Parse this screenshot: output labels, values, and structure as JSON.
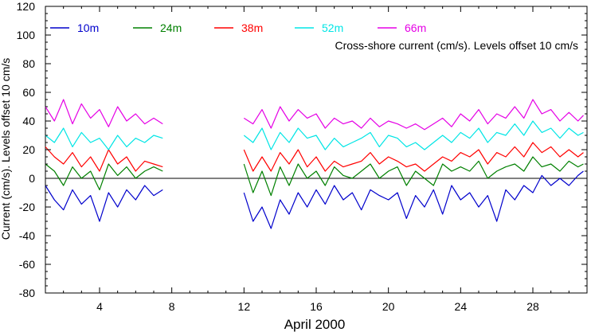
{
  "chart_data": {
    "type": "line",
    "title": "",
    "annotation": "Cross-shore current (cm/s). Levels offset 10 cm/s",
    "xlabel": "April 2000",
    "ylabel": "Current (cm/s). Levels offset 10 cm/s",
    "xlim": [
      1,
      31
    ],
    "ylim": [
      -80,
      120
    ],
    "x_ticks": [
      4,
      8,
      12,
      16,
      20,
      24,
      28
    ],
    "x_tick_labels": [
      "4",
      "8",
      "12",
      "16",
      "20",
      "24",
      "28"
    ],
    "y_ticks": [
      -80,
      -60,
      -40,
      -20,
      0,
      20,
      40,
      60,
      80,
      100,
      120
    ],
    "y_tick_labels": [
      "-80",
      "-60",
      "-40",
      "-20",
      "0",
      "20",
      "40",
      "60",
      "80",
      "100",
      "120"
    ],
    "zero_line": 0,
    "legend_position": "top-left",
    "gap": [
      7.6,
      11.9
    ],
    "series": [
      {
        "name": "10m",
        "color": "#0000cc",
        "x": [
          1.0,
          1.5,
          2.0,
          2.5,
          3.0,
          3.5,
          4.0,
          4.5,
          5.0,
          5.5,
          6.0,
          6.5,
          7.0,
          7.5,
          12.0,
          12.5,
          13.0,
          13.5,
          14.0,
          14.5,
          15.0,
          15.5,
          16.0,
          16.5,
          17.0,
          17.5,
          18.0,
          18.5,
          19.0,
          19.5,
          20.0,
          20.5,
          21.0,
          21.5,
          22.0,
          22.5,
          23.0,
          23.5,
          24.0,
          24.5,
          25.0,
          25.5,
          26.0,
          26.5,
          27.0,
          27.5,
          28.0,
          28.5,
          29.0,
          29.5,
          30.0,
          30.5,
          30.8
        ],
        "values": [
          -5,
          -15,
          -22,
          -8,
          -18,
          -12,
          -30,
          -10,
          -20,
          -8,
          -15,
          -5,
          -12,
          -8,
          -10,
          -30,
          -20,
          -35,
          -15,
          -25,
          -10,
          -20,
          -8,
          -18,
          -5,
          -15,
          -10,
          -22,
          -8,
          -12,
          -15,
          -10,
          -28,
          -12,
          -20,
          -8,
          -25,
          -5,
          -15,
          -10,
          -20,
          -12,
          -30,
          -8,
          -15,
          -5,
          -10,
          2,
          -5,
          0,
          -5,
          2,
          5
        ]
      },
      {
        "name": "24m",
        "color": "#008000",
        "x": [
          1.0,
          1.5,
          2.0,
          2.5,
          3.0,
          3.5,
          4.0,
          4.5,
          5.0,
          5.5,
          6.0,
          6.5,
          7.0,
          7.5,
          12.0,
          12.5,
          13.0,
          13.5,
          14.0,
          14.5,
          15.0,
          15.5,
          16.0,
          16.5,
          17.0,
          17.5,
          18.0,
          18.5,
          19.0,
          19.5,
          20.0,
          20.5,
          21.0,
          21.5,
          22.0,
          22.5,
          23.0,
          23.5,
          24.0,
          24.5,
          25.0,
          25.5,
          26.0,
          26.5,
          27.0,
          27.5,
          28.0,
          28.5,
          29.0,
          29.5,
          30.0,
          30.5,
          30.8
        ],
        "values": [
          10,
          5,
          -5,
          8,
          0,
          5,
          -8,
          10,
          2,
          8,
          0,
          5,
          8,
          5,
          10,
          -10,
          5,
          -12,
          8,
          -5,
          10,
          0,
          5,
          -5,
          8,
          2,
          0,
          5,
          10,
          0,
          5,
          8,
          -5,
          5,
          0,
          -5,
          10,
          5,
          8,
          5,
          12,
          0,
          5,
          8,
          10,
          5,
          15,
          8,
          10,
          5,
          12,
          8,
          10
        ]
      },
      {
        "name": "38m",
        "color": "#ff0000",
        "x": [
          1.0,
          1.5,
          2.0,
          2.5,
          3.0,
          3.5,
          4.0,
          4.5,
          5.0,
          5.5,
          6.0,
          6.5,
          7.0,
          7.5,
          12.0,
          12.5,
          13.0,
          13.5,
          14.0,
          14.5,
          15.0,
          15.5,
          16.0,
          16.5,
          17.0,
          17.5,
          18.0,
          18.5,
          19.0,
          19.5,
          20.0,
          20.5,
          21.0,
          21.5,
          22.0,
          22.5,
          23.0,
          23.5,
          24.0,
          24.5,
          25.0,
          25.5,
          26.0,
          26.5,
          27.0,
          27.5,
          28.0,
          28.5,
          29.0,
          29.5,
          30.0,
          30.5,
          30.8
        ],
        "values": [
          22,
          15,
          10,
          18,
          8,
          15,
          5,
          20,
          10,
          15,
          5,
          12,
          10,
          8,
          20,
          5,
          15,
          5,
          18,
          10,
          20,
          8,
          15,
          5,
          12,
          8,
          10,
          12,
          18,
          10,
          15,
          12,
          8,
          10,
          5,
          10,
          15,
          12,
          18,
          15,
          20,
          10,
          18,
          15,
          22,
          15,
          25,
          18,
          22,
          15,
          20,
          15,
          18
        ]
      },
      {
        "name": "52m",
        "color": "#00e5e5",
        "x": [
          1.0,
          1.5,
          2.0,
          2.5,
          3.0,
          3.5,
          4.0,
          4.5,
          5.0,
          5.5,
          6.0,
          6.5,
          7.0,
          7.5,
          12.0,
          12.5,
          13.0,
          13.5,
          14.0,
          14.5,
          15.0,
          15.5,
          16.0,
          16.5,
          17.0,
          17.5,
          18.0,
          18.5,
          19.0,
          19.5,
          20.0,
          20.5,
          21.0,
          21.5,
          22.0,
          22.5,
          23.0,
          23.5,
          24.0,
          24.5,
          25.0,
          25.5,
          26.0,
          26.5,
          27.0,
          27.5,
          28.0,
          28.5,
          29.0,
          29.5,
          30.0,
          30.5,
          30.8
        ],
        "values": [
          30,
          25,
          35,
          22,
          32,
          25,
          28,
          20,
          30,
          22,
          28,
          25,
          30,
          28,
          30,
          25,
          35,
          20,
          32,
          25,
          35,
          28,
          30,
          20,
          28,
          22,
          25,
          28,
          32,
          22,
          30,
          28,
          22,
          25,
          20,
          25,
          30,
          25,
          32,
          28,
          35,
          25,
          32,
          30,
          38,
          30,
          40,
          32,
          35,
          28,
          35,
          30,
          32
        ]
      },
      {
        "name": "66m",
        "color": "#e500e5",
        "x": [
          1.0,
          1.5,
          2.0,
          2.5,
          3.0,
          3.5,
          4.0,
          4.5,
          5.0,
          5.5,
          6.0,
          6.5,
          7.0,
          7.5,
          12.0,
          12.5,
          13.0,
          13.5,
          14.0,
          14.5,
          15.0,
          15.5,
          16.0,
          16.5,
          17.0,
          17.5,
          18.0,
          18.5,
          19.0,
          19.5,
          20.0,
          20.5,
          21.0,
          21.5,
          22.0,
          22.5,
          23.0,
          23.5,
          24.0,
          24.5,
          25.0,
          25.5,
          26.0,
          26.5,
          27.0,
          27.5,
          28.0,
          28.5,
          29.0,
          29.5,
          30.0,
          30.5,
          30.8
        ],
        "values": [
          50,
          40,
          55,
          38,
          52,
          42,
          48,
          36,
          50,
          40,
          45,
          38,
          42,
          38,
          42,
          38,
          48,
          35,
          50,
          40,
          48,
          42,
          45,
          35,
          42,
          38,
          40,
          35,
          42,
          36,
          40,
          38,
          35,
          38,
          34,
          38,
          42,
          36,
          45,
          40,
          48,
          38,
          45,
          42,
          50,
          42,
          55,
          45,
          48,
          40,
          46,
          40,
          44
        ]
      }
    ]
  }
}
